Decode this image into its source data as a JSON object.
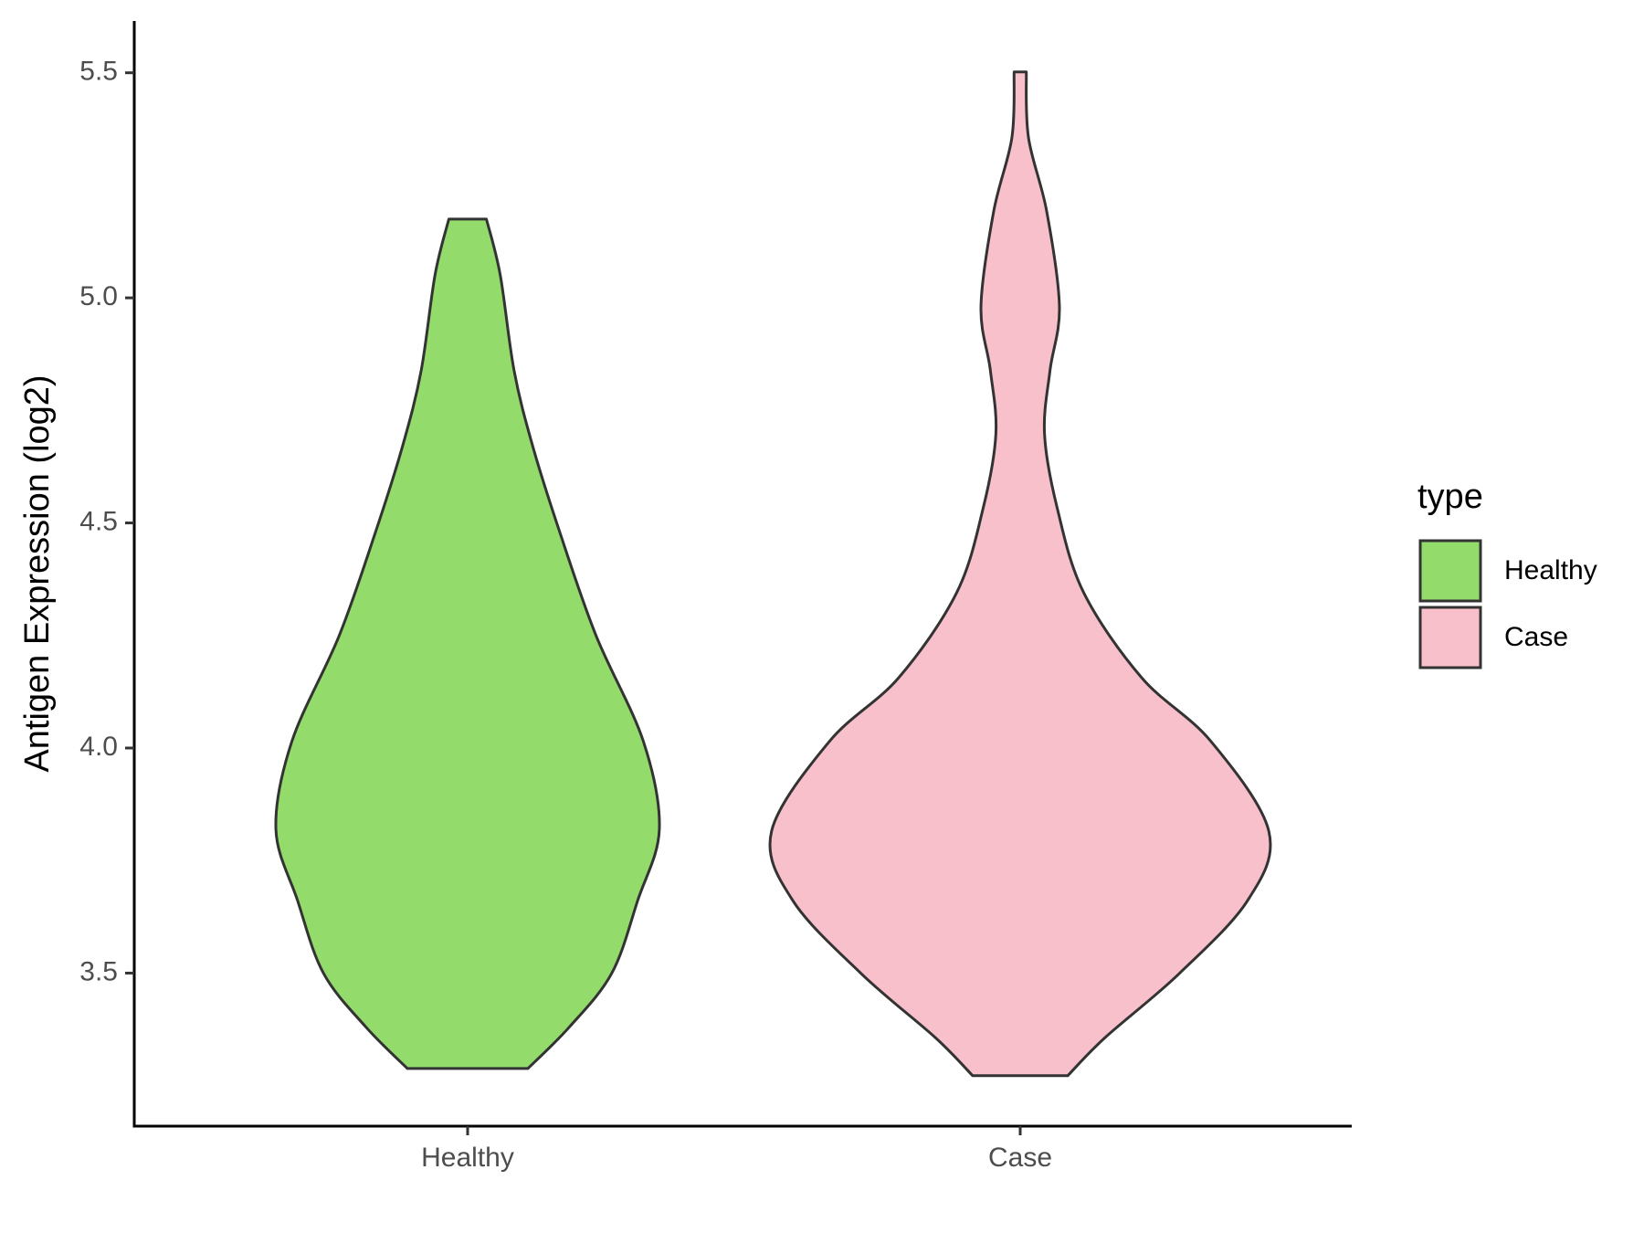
{
  "chart_data": {
    "type": "violin",
    "y_label": "Antigen Expression (log2)",
    "categories": [
      "Healthy",
      "Case"
    ],
    "ylim": [
      3.16,
      5.615
    ],
    "yticks": [
      {
        "value": 3.5,
        "label": "3.5"
      },
      {
        "value": 4,
        "label": "4.0"
      },
      {
        "value": 4.5,
        "label": "4.5"
      },
      {
        "value": 5,
        "label": "5.0"
      },
      {
        "value": 5.5,
        "label": "5.5"
      }
    ],
    "legend_title": "type",
    "legend_position": "right",
    "series": [
      {
        "name": "Healthy",
        "color": "#93db6b",
        "y": [
          5.175,
          5.051,
          4.839,
          4.674,
          4.486,
          4.251,
          4.015,
          3.82,
          3.662,
          3.5,
          3.38,
          3.288
        ],
        "half_width": [
          0.034,
          0.059,
          0.084,
          0.117,
          0.165,
          0.232,
          0.318,
          0.347,
          0.308,
          0.261,
          0.184,
          0.109
        ]
      },
      {
        "name": "Case",
        "color": "#f8c0cb",
        "y": [
          5.502,
          5.356,
          5.192,
          4.98,
          4.839,
          4.698,
          4.533,
          4.345,
          4.156,
          4.015,
          3.815,
          3.662,
          3.498,
          3.356,
          3.272
        ],
        "half_width": [
          0.011,
          0.015,
          0.048,
          0.071,
          0.054,
          0.044,
          0.067,
          0.115,
          0.22,
          0.345,
          0.45,
          0.412,
          0.287,
          0.153,
          0.086
        ]
      }
    ]
  }
}
